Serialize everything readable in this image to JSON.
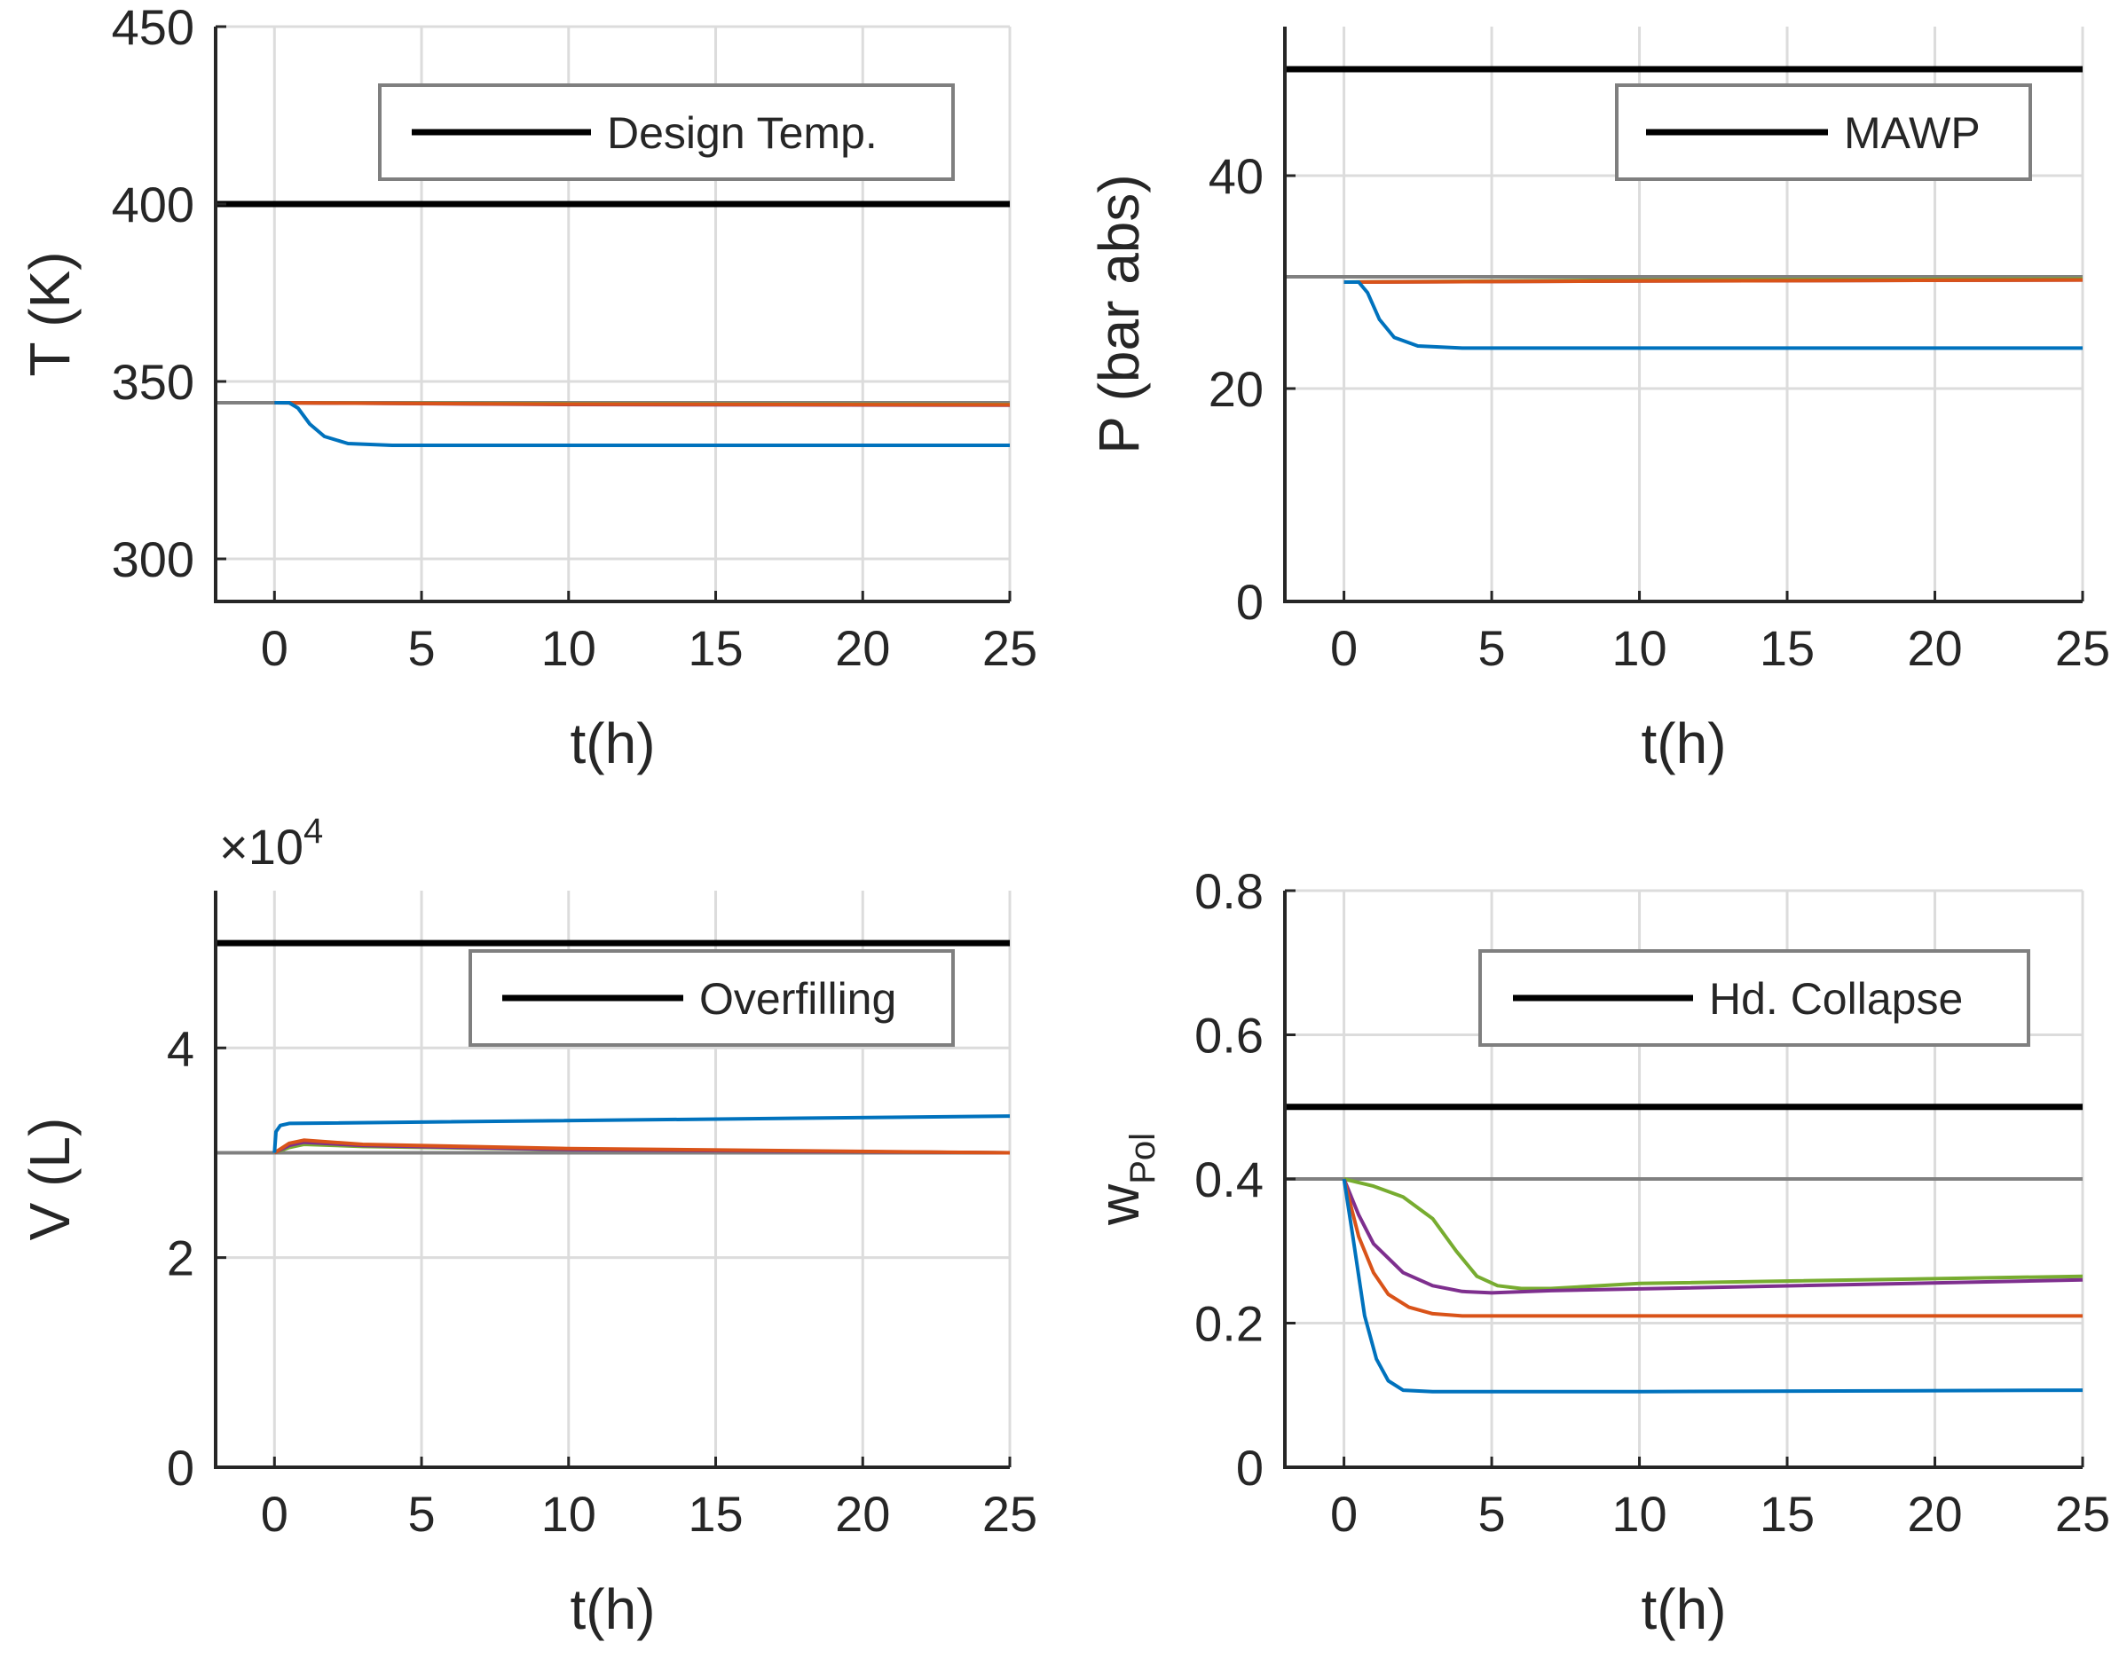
{
  "chart_data": [
    {
      "id": "temperature",
      "type": "line",
      "xlabel": "t(h)",
      "ylabel": "T (K)",
      "xlim": [
        -2,
        25
      ],
      "ylim": [
        288,
        450
      ],
      "xticks": [
        "0",
        "5",
        "10",
        "15",
        "20",
        "25"
      ],
      "xtick_values": [
        0,
        5,
        10,
        15,
        20,
        25
      ],
      "yticks": [
        "300",
        "350",
        "400",
        "450"
      ],
      "ytick_values": [
        300,
        350,
        400,
        450
      ],
      "grid": true,
      "legend": {
        "position": "top-right",
        "entries": [
          "Design Temp."
        ]
      },
      "limit_lines": [
        {
          "name": "Design Temp.",
          "y": 400,
          "color": "#000000"
        },
        {
          "y": 344,
          "color": "#808080"
        }
      ],
      "series": [
        {
          "color": "#0072BD",
          "x": [
            0,
            0.5,
            0.8,
            1.2,
            1.7,
            2.5,
            4,
            10,
            25
          ],
          "y": [
            344,
            344,
            342.5,
            338,
            334.5,
            332.5,
            332,
            332,
            332
          ]
        },
        {
          "color": "#D95319",
          "x": [
            0,
            10,
            25
          ],
          "y": [
            344,
            343.6,
            343.4
          ]
        },
        {
          "color": "#7E2F8E",
          "x": [
            0,
            10,
            25
          ],
          "y": [
            344,
            343.5,
            343.3
          ]
        },
        {
          "color": "#77AC30",
          "x": [
            0,
            10,
            25
          ],
          "y": [
            344,
            343.7,
            343.5
          ]
        }
      ]
    },
    {
      "id": "pressure",
      "type": "line",
      "xlabel": "t(h)",
      "ylabel": "P (bar abs)",
      "xlim": [
        -2,
        25
      ],
      "ylim": [
        0,
        54
      ],
      "xticks": [
        "0",
        "5",
        "10",
        "15",
        "20",
        "25"
      ],
      "xtick_values": [
        0,
        5,
        10,
        15,
        20,
        25
      ],
      "yticks": [
        "0",
        "20",
        "40"
      ],
      "ytick_values": [
        0,
        20,
        40
      ],
      "grid": true,
      "legend": {
        "position": "top-right",
        "entries": [
          "MAWP"
        ]
      },
      "limit_lines": [
        {
          "name": "MAWP",
          "y": 50,
          "color": "#000000"
        },
        {
          "y": 30.5,
          "color": "#808080"
        }
      ],
      "series": [
        {
          "color": "#0072BD",
          "x": [
            0,
            0.5,
            0.8,
            1.2,
            1.7,
            2.5,
            4,
            10,
            25
          ],
          "y": [
            30,
            30,
            29,
            26.5,
            24.8,
            24,
            23.8,
            23.8,
            23.8
          ]
        },
        {
          "color": "#D95319",
          "x": [
            0,
            10,
            25
          ],
          "y": [
            30,
            30.1,
            30.2
          ]
        },
        {
          "color": "#7E2F8E",
          "x": [
            0,
            10,
            25
          ],
          "y": [
            30,
            30.1,
            30.2
          ]
        },
        {
          "color": "#77AC30",
          "x": [
            0,
            10,
            25
          ],
          "y": [
            30,
            30.2,
            30.3
          ]
        }
      ]
    },
    {
      "id": "volume",
      "type": "line",
      "xlabel": "t(h)",
      "ylabel": "V (L)",
      "exponent_prefix": "×10",
      "exponent_power": "4",
      "xlim": [
        -2,
        25
      ],
      "ylim": [
        0,
        5.5
      ],
      "xticks": [
        "0",
        "5",
        "10",
        "15",
        "20",
        "25"
      ],
      "xtick_values": [
        0,
        5,
        10,
        15,
        20,
        25
      ],
      "yticks": [
        "0",
        "2",
        "4"
      ],
      "ytick_values": [
        0,
        2,
        4
      ],
      "grid": true,
      "legend": {
        "position": "top-right",
        "entries": [
          "Overfilling"
        ]
      },
      "limit_lines": [
        {
          "name": "Overfilling",
          "y": 5.0,
          "color": "#000000"
        },
        {
          "y": 3.0,
          "color": "#808080"
        }
      ],
      "series": [
        {
          "color": "#0072BD",
          "x": [
            0,
            0.05,
            0.2,
            0.5,
            25
          ],
          "y": [
            3.0,
            3.2,
            3.26,
            3.28,
            3.35
          ]
        },
        {
          "color": "#D95319",
          "x": [
            0,
            0.5,
            1,
            3,
            10,
            25
          ],
          "y": [
            3.0,
            3.09,
            3.12,
            3.08,
            3.04,
            3.0
          ]
        },
        {
          "color": "#7E2F8E",
          "x": [
            0,
            0.5,
            1,
            3,
            10,
            25
          ],
          "y": [
            3.0,
            3.07,
            3.1,
            3.07,
            3.03,
            3.0
          ]
        },
        {
          "color": "#77AC30",
          "x": [
            0,
            0.5,
            1,
            3,
            10,
            25
          ],
          "y": [
            3.0,
            3.05,
            3.08,
            3.06,
            3.03,
            3.0
          ]
        }
      ]
    },
    {
      "id": "polymer-fraction",
      "type": "line",
      "xlabel": "t(h)",
      "ylabel": "w",
      "ylabel_subscript": "Pol",
      "xlim": [
        -2,
        25
      ],
      "ylim": [
        0,
        0.8
      ],
      "xticks": [
        "0",
        "5",
        "10",
        "15",
        "20",
        "25"
      ],
      "xtick_values": [
        0,
        5,
        10,
        15,
        20,
        25
      ],
      "yticks": [
        "0",
        "0.2",
        "0.4",
        "0.6",
        "0.8"
      ],
      "ytick_values": [
        0,
        0.2,
        0.4,
        0.6,
        0.8
      ],
      "grid": true,
      "legend": {
        "position": "top-right",
        "entries": [
          "Hd. Collapse"
        ]
      },
      "limit_lines": [
        {
          "name": "Hd. Collapse",
          "y": 0.5,
          "color": "#000000"
        },
        {
          "y": 0.4,
          "color": "#808080"
        }
      ],
      "series": [
        {
          "color": "#0072BD",
          "x": [
            0,
            0.3,
            0.7,
            1.1,
            1.5,
            2,
            3,
            10,
            25
          ],
          "y": [
            0.4,
            0.32,
            0.21,
            0.15,
            0.12,
            0.107,
            0.105,
            0.105,
            0.107
          ]
        },
        {
          "color": "#D95319",
          "x": [
            0,
            0.5,
            1,
            1.5,
            2.2,
            3,
            4,
            10,
            25
          ],
          "y": [
            0.4,
            0.32,
            0.27,
            0.24,
            0.222,
            0.213,
            0.21,
            0.21,
            0.21
          ]
        },
        {
          "color": "#7E2F8E",
          "x": [
            0,
            0.5,
            1,
            2,
            3,
            4,
            5,
            7,
            25
          ],
          "y": [
            0.4,
            0.35,
            0.31,
            0.27,
            0.252,
            0.244,
            0.242,
            0.245,
            0.26
          ]
        },
        {
          "color": "#77AC30",
          "x": [
            0,
            1,
            2,
            3,
            3.8,
            4.5,
            5.2,
            6,
            7,
            10,
            25
          ],
          "y": [
            0.4,
            0.39,
            0.375,
            0.345,
            0.3,
            0.265,
            0.252,
            0.248,
            0.248,
            0.255,
            0.265
          ]
        }
      ]
    }
  ]
}
